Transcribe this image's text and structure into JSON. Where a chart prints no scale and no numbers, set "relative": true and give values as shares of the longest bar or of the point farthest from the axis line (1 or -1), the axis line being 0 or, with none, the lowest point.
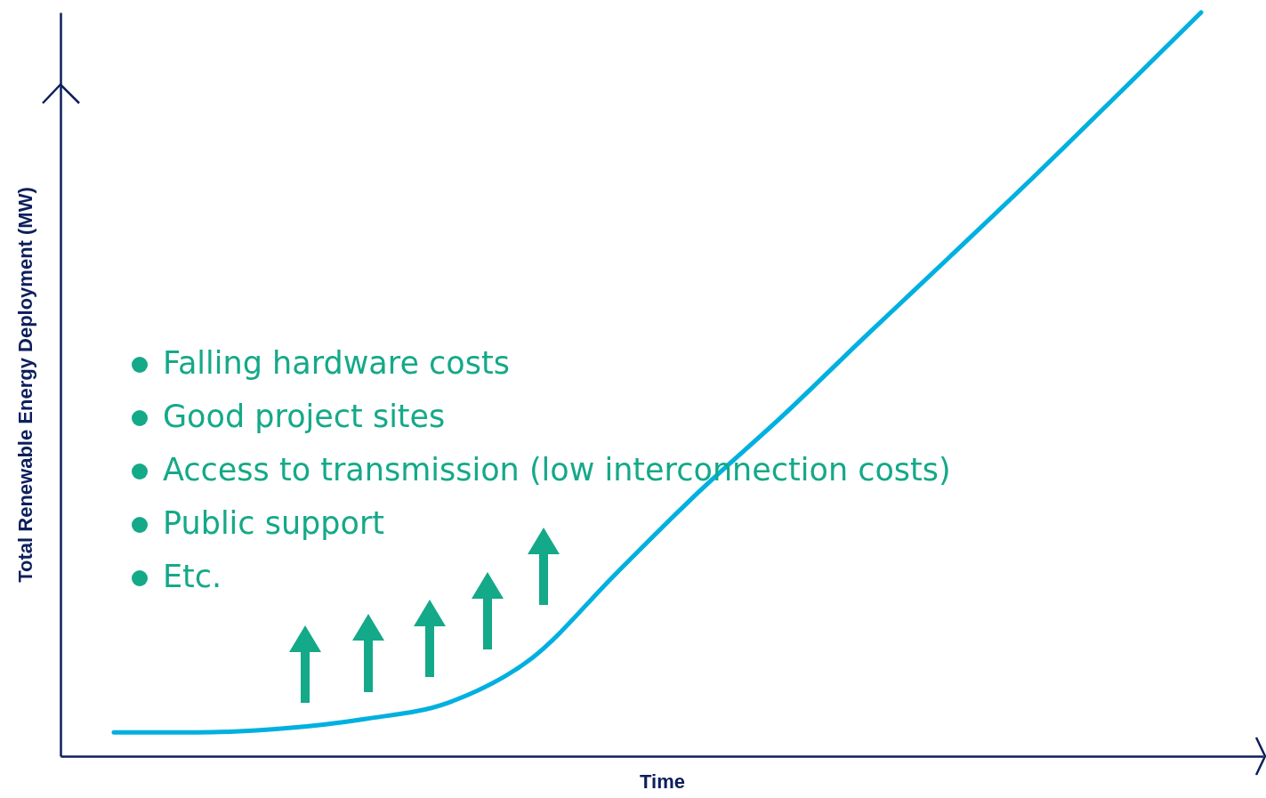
{
  "chart_data": {
    "type": "line",
    "relative": true,
    "xlabel": "Time",
    "ylabel": "Total Renewable Energy Deployment (MW)",
    "categories": [
      null,
      null,
      null,
      null,
      null,
      null,
      null,
      null,
      null,
      null,
      null,
      null,
      null,
      null
    ],
    "series": [
      {
        "color": "#00b0e0",
        "values": [
          0.032,
          0.032,
          0.037,
          0.05,
          0.072,
          0.132,
          0.245,
          0.356,
          0.458,
          0.566,
          0.672,
          0.779,
          0.889,
          1
        ]
      }
    ],
    "annotations": [
      "Falling hardware costs",
      "Good project sites",
      "Access to transmission (low interconnection costs)",
      "Public support",
      "Etc."
    ],
    "marker": "none",
    "line_style": "solid",
    "grid": false
  }
}
